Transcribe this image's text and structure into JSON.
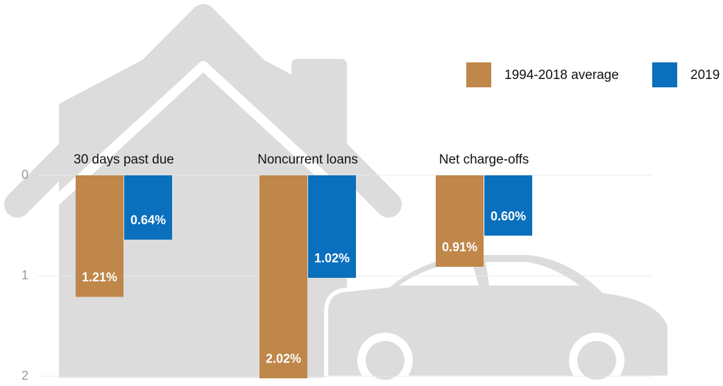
{
  "chart_data": {
    "type": "bar",
    "categories": [
      "30 days past due",
      "Noncurrent loans",
      "Net charge-offs"
    ],
    "series": [
      {
        "name": "1994-2018 average",
        "color": "#bf874a",
        "values": [
          1.21,
          2.02,
          0.91
        ],
        "value_labels": [
          "1.21%",
          "2.02%",
          "0.91%"
        ]
      },
      {
        "name": "2019",
        "color": "#0a6fbd",
        "values": [
          0.64,
          1.02,
          0.6
        ],
        "value_labels": [
          "0.64%",
          "1.02%",
          "0.60%"
        ]
      }
    ],
    "ylim": [
      0,
      2.05
    ],
    "yticks": [
      0,
      1,
      2
    ],
    "y_inverted": true,
    "grid": true,
    "legend": "top-right"
  }
}
